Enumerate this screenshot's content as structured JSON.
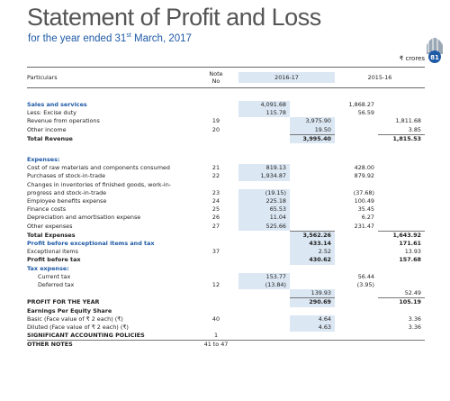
{
  "header": {
    "title": "Statement of Profit and Loss",
    "subtitle": {
      "pre": "for the year ended 31",
      "sup": "st",
      "post": " March, 2017"
    },
    "page_number": "81",
    "currency": "₹ crores"
  },
  "table": {
    "columns": [
      "Particulars",
      "Note\nNo",
      "2016-17",
      "2015-16"
    ],
    "rows": [
      [
        "Sales and services",
        null,
        "4,091.68",
        null,
        "1,868.27",
        null
      ],
      [
        "Less: Excise duty",
        null,
        "115.78",
        null,
        "56.59",
        null
      ],
      [
        "Revenue from operations",
        "19",
        null,
        "3,975.90",
        null,
        "1,811.68"
      ],
      [
        "Other income",
        "20",
        null,
        "19.50",
        null,
        "3.85"
      ],
      [
        "Total Revenue",
        null,
        null,
        "3,995.40",
        null,
        "1,815.53"
      ],
      [
        "Expenses:",
        null,
        null,
        null,
        null,
        null
      ],
      [
        "Cost of raw materials and components consumed",
        "21",
        "819.13",
        null,
        "428.00",
        null
      ],
      [
        "Purchases of stock-in-trade",
        "22",
        "1,934.87",
        null,
        "879.92",
        null
      ],
      [
        "Changes in inventories of finished goods, work-in-progress and stock-in-trade",
        "23",
        "(19.15)",
        null,
        "(37.68)",
        null
      ],
      [
        "Employee benefits expense",
        "24",
        "225.18",
        null,
        "100.49",
        null
      ],
      [
        "Finance costs",
        "25",
        "65.53",
        null,
        "35.45",
        null
      ],
      [
        "Depreciation and amortisation expense",
        "26",
        "11.04",
        null,
        "6.27",
        null
      ],
      [
        "Other expenses",
        "27",
        "525.66",
        null,
        "231.47",
        null
      ],
      [
        "Total Expenses",
        null,
        null,
        "3,562.26",
        null,
        "1,643.92"
      ],
      [
        "Profit before exceptional items and tax",
        null,
        null,
        "433.14",
        null,
        "171.61"
      ],
      [
        "Exceptional items",
        "37",
        null,
        "2.52",
        null,
        "13.93"
      ],
      [
        "Profit before tax",
        null,
        null,
        "430.62",
        null,
        "157.68"
      ],
      [
        "Tax expense:",
        null,
        null,
        null,
        null,
        null
      ],
      [
        "Current tax",
        null,
        "153.77",
        null,
        "56.44",
        null
      ],
      [
        "Deferred tax",
        "12",
        "(13.84)",
        null,
        "(3.95)",
        null
      ],
      [
        null,
        null,
        null,
        "139.93",
        null,
        "52.49"
      ],
      [
        "PROFIT FOR THE YEAR",
        null,
        null,
        "290.69",
        null,
        "105.19"
      ],
      [
        "Earnings Per Equity Share",
        null,
        null,
        null,
        null,
        null
      ],
      [
        "Basic (Face value of ₹ 2 each) (₹)",
        "40",
        null,
        "4.64",
        null,
        "3.36"
      ],
      [
        "Diluted (Face value of ₹ 2 each) (₹)",
        null,
        null,
        "4.63",
        null,
        "3.36"
      ],
      [
        "SIGNIFICANT ACCOUNTING POLICIES",
        "1",
        null,
        null,
        null,
        null
      ],
      [
        "OTHER NOTES",
        "41 to 47",
        null,
        null,
        null,
        null
      ]
    ]
  }
}
